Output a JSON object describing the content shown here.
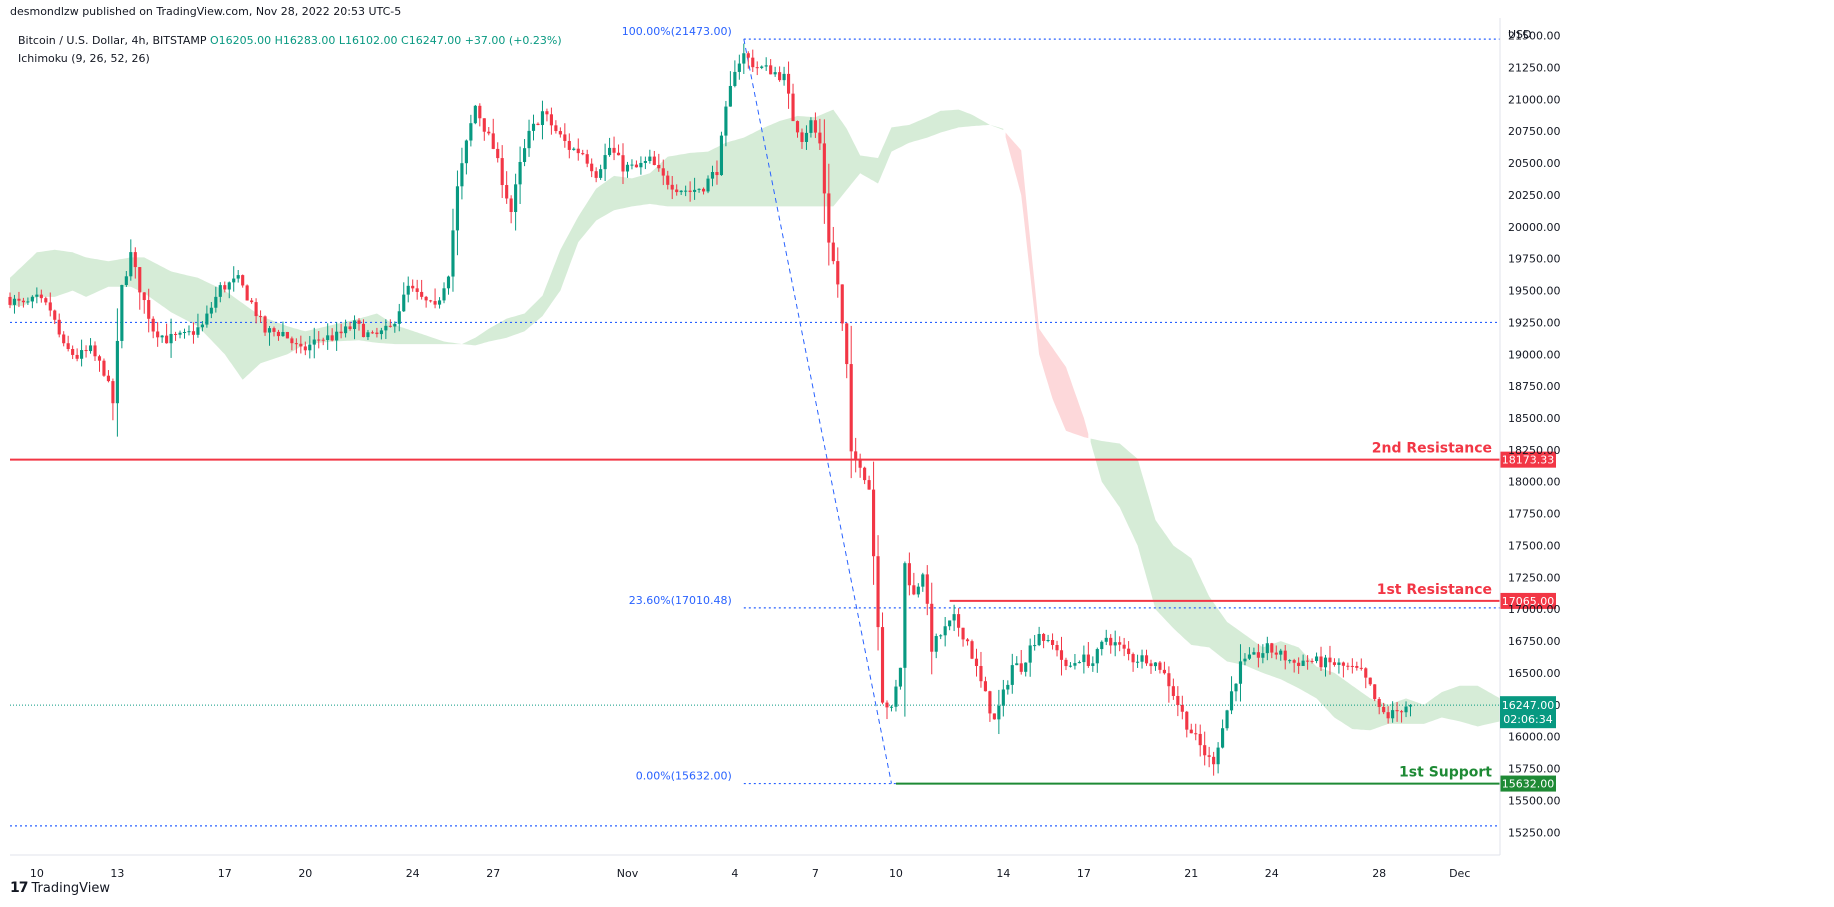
{
  "attribution": "desmondlzw published on TradingView.com, Nov 28, 2022 20:53 UTC-5",
  "brand": {
    "logo_text": "17",
    "name": "TradingView"
  },
  "legend": {
    "symbol": "Bitcoin / U.S. Dollar, 4h, BITSTAMP",
    "open": "O16205.00",
    "high": "H16283.00",
    "low": "L16102.00",
    "close": "C16247.00",
    "change": "+37.00 (+0.23%)",
    "indicator": "Ichimoku (9, 26, 52, 26)"
  },
  "colors": {
    "up": "#089981",
    "down": "#f23645",
    "resistance": "#f23645",
    "support": "#1e8a35",
    "fib": "#2962ff",
    "cloud_green": "#c8e6c9",
    "cloud_red": "#fccbcd"
  },
  "chart_data": {
    "type": "candlestick",
    "y_axis": {
      "unit": "USD",
      "ylim": [
        15150,
        21560
      ],
      "ticks": [
        "21500.00",
        "21250.00",
        "21000.00",
        "20750.00",
        "20500.00",
        "20250.00",
        "20000.00",
        "19750.00",
        "19500.00",
        "19250.00",
        "19000.00",
        "18750.00",
        "18500.00",
        "18250.00",
        "18000.00",
        "17750.00",
        "17500.00",
        "17250.00",
        "17000.00",
        "16750.00",
        "16500.00",
        "16250.00",
        "16000.00",
        "15750.00",
        "15500.00",
        "15250.00"
      ]
    },
    "x_axis": {
      "ticks": [
        {
          "label": "10",
          "slot": 6
        },
        {
          "label": "13",
          "slot": 24
        },
        {
          "label": "17",
          "slot": 48
        },
        {
          "label": "20",
          "slot": 66
        },
        {
          "label": "24",
          "slot": 90
        },
        {
          "label": "27",
          "slot": 108
        },
        {
          "label": "Nov",
          "slot": 138
        },
        {
          "label": "4",
          "slot": 162
        },
        {
          "label": "7",
          "slot": 180
        },
        {
          "label": "10",
          "slot": 198
        },
        {
          "label": "14",
          "slot": 222
        },
        {
          "label": "17",
          "slot": 240
        },
        {
          "label": "21",
          "slot": 264
        },
        {
          "label": "24",
          "slot": 282
        },
        {
          "label": "28",
          "slot": 306
        },
        {
          "label": "Dec",
          "slot": 324
        }
      ],
      "slot_range": [
        0,
        333
      ]
    },
    "price_anchors": [
      [
        0,
        19450
      ],
      [
        4,
        19380
      ],
      [
        7,
        19430
      ],
      [
        10,
        19350
      ],
      [
        13,
        19050
      ],
      [
        16,
        18980
      ],
      [
        19,
        19030
      ],
      [
        22,
        18870
      ],
      [
        24,
        18620
      ],
      [
        26,
        19520
      ],
      [
        28,
        19780
      ],
      [
        30,
        19520
      ],
      [
        33,
        19200
      ],
      [
        36,
        19120
      ],
      [
        40,
        19140
      ],
      [
        44,
        19220
      ],
      [
        48,
        19520
      ],
      [
        52,
        19580
      ],
      [
        55,
        19400
      ],
      [
        58,
        19180
      ],
      [
        62,
        19170
      ],
      [
        66,
        19020
      ],
      [
        70,
        19120
      ],
      [
        74,
        19140
      ],
      [
        78,
        19230
      ],
      [
        82,
        19130
      ],
      [
        86,
        19200
      ],
      [
        90,
        19520
      ],
      [
        93,
        19430
      ],
      [
        96,
        19350
      ],
      [
        99,
        19650
      ],
      [
        101,
        20300
      ],
      [
        103,
        20650
      ],
      [
        105,
        20950
      ],
      [
        107,
        20780
      ],
      [
        109,
        20620
      ],
      [
        111,
        20370
      ],
      [
        113,
        20120
      ],
      [
        115,
        20480
      ],
      [
        117,
        20720
      ],
      [
        120,
        20900
      ],
      [
        123,
        20750
      ],
      [
        126,
        20620
      ],
      [
        129,
        20580
      ],
      [
        132,
        20420
      ],
      [
        135,
        20620
      ],
      [
        138,
        20470
      ],
      [
        141,
        20460
      ],
      [
        144,
        20520
      ],
      [
        147,
        20380
      ],
      [
        150,
        20310
      ],
      [
        153,
        20280
      ],
      [
        156,
        20320
      ],
      [
        159,
        20450
      ],
      [
        161,
        20900
      ],
      [
        163,
        21250
      ],
      [
        165,
        21350
      ],
      [
        168,
        21250
      ],
      [
        171,
        21230
      ],
      [
        174,
        21170
      ],
      [
        176,
        20850
      ],
      [
        178,
        20700
      ],
      [
        180,
        20820
      ],
      [
        182,
        20650
      ],
      [
        184,
        19900
      ],
      [
        186,
        19550
      ],
      [
        188,
        18900
      ],
      [
        189,
        18200
      ],
      [
        191,
        18150
      ],
      [
        193,
        17950
      ],
      [
        195,
        16900
      ],
      [
        196,
        16300
      ],
      [
        198,
        16200
      ],
      [
        200,
        16550
      ],
      [
        201,
        17350
      ],
      [
        203,
        17100
      ],
      [
        205,
        17300
      ],
      [
        207,
        16700
      ],
      [
        209,
        16800
      ],
      [
        212,
        16920
      ],
      [
        215,
        16750
      ],
      [
        218,
        16420
      ],
      [
        221,
        16120
      ],
      [
        223,
        16330
      ],
      [
        225,
        16560
      ],
      [
        227,
        16550
      ],
      [
        229,
        16700
      ],
      [
        231,
        16820
      ],
      [
        233,
        16720
      ],
      [
        235,
        16700
      ],
      [
        237,
        16520
      ],
      [
        240,
        16620
      ],
      [
        243,
        16580
      ],
      [
        246,
        16780
      ],
      [
        249,
        16700
      ],
      [
        252,
        16610
      ],
      [
        255,
        16620
      ],
      [
        258,
        16550
      ],
      [
        260,
        16420
      ],
      [
        262,
        16260
      ],
      [
        264,
        16100
      ],
      [
        266,
        15980
      ],
      [
        268,
        15870
      ],
      [
        269,
        15820
      ],
      [
        270,
        15820
      ],
      [
        272,
        16070
      ],
      [
        274,
        16350
      ],
      [
        276,
        16560
      ],
      [
        279,
        16620
      ],
      [
        282,
        16690
      ],
      [
        285,
        16640
      ],
      [
        288,
        16580
      ],
      [
        291,
        16600
      ],
      [
        294,
        16580
      ],
      [
        297,
        16570
      ],
      [
        300,
        16540
      ],
      [
        303,
        16500
      ],
      [
        305,
        16380
      ],
      [
        307,
        16200
      ],
      [
        309,
        16160
      ],
      [
        311,
        16200
      ],
      [
        313,
        16247
      ]
    ],
    "ichimoku_cloud": {
      "span_a": [
        [
          0,
          19600
        ],
        [
          3,
          19700
        ],
        [
          6,
          19800
        ],
        [
          10,
          19820
        ],
        [
          14,
          19800
        ],
        [
          17,
          19760
        ],
        [
          22,
          19730
        ],
        [
          27,
          19760
        ],
        [
          30,
          19760
        ],
        [
          36,
          19650
        ],
        [
          42,
          19600
        ],
        [
          48,
          19500
        ],
        [
          52,
          19400
        ],
        [
          56,
          19300
        ],
        [
          62,
          19220
        ],
        [
          66,
          19180
        ],
        [
          72,
          19230
        ],
        [
          78,
          19280
        ],
        [
          82,
          19320
        ],
        [
          86,
          19230
        ],
        [
          92,
          19160
        ],
        [
          97,
          19100
        ],
        [
          101,
          19080
        ],
        [
          104,
          19130
        ],
        [
          107,
          19200
        ],
        [
          111,
          19280
        ],
        [
          115,
          19320
        ],
        [
          119,
          19460
        ],
        [
          123,
          19820
        ],
        [
          127,
          20080
        ],
        [
          131,
          20300
        ],
        [
          135,
          20400
        ],
        [
          139,
          20380
        ],
        [
          143,
          20420
        ],
        [
          147,
          20550
        ],
        [
          152,
          20580
        ],
        [
          156,
          20590
        ],
        [
          160,
          20660
        ],
        [
          164,
          20700
        ],
        [
          168,
          20770
        ],
        [
          172,
          20830
        ],
        [
          176,
          20870
        ],
        [
          180,
          20860
        ],
        [
          184,
          20920
        ],
        [
          187,
          20770
        ],
        [
          190,
          20560
        ],
        [
          194,
          20540
        ],
        [
          197,
          20780
        ],
        [
          201,
          20800
        ],
        [
          205,
          20860
        ],
        [
          208,
          20910
        ],
        [
          212,
          20920
        ],
        [
          215,
          20880
        ],
        [
          219,
          20800
        ],
        [
          222,
          20770
        ]
      ],
      "span_b": [
        [
          0,
          19380
        ],
        [
          3,
          19380
        ],
        [
          6,
          19450
        ],
        [
          10,
          19450
        ],
        [
          14,
          19500
        ],
        [
          17,
          19450
        ],
        [
          22,
          19530
        ],
        [
          27,
          19530
        ],
        [
          30,
          19480
        ],
        [
          36,
          19330
        ],
        [
          42,
          19220
        ],
        [
          48,
          19000
        ],
        [
          52,
          18800
        ],
        [
          56,
          18930
        ],
        [
          62,
          19000
        ],
        [
          66,
          19080
        ],
        [
          72,
          19100
        ],
        [
          78,
          19110
        ],
        [
          82,
          19090
        ],
        [
          86,
          19080
        ],
        [
          92,
          19080
        ],
        [
          97,
          19080
        ],
        [
          101,
          19080
        ],
        [
          104,
          19070
        ],
        [
          107,
          19100
        ],
        [
          111,
          19130
        ],
        [
          115,
          19180
        ],
        [
          119,
          19300
        ],
        [
          123,
          19500
        ],
        [
          127,
          19880
        ],
        [
          131,
          20050
        ],
        [
          135,
          20130
        ],
        [
          139,
          20160
        ],
        [
          143,
          20180
        ],
        [
          147,
          20160
        ],
        [
          152,
          20160
        ],
        [
          156,
          20160
        ],
        [
          160,
          20160
        ],
        [
          164,
          20160
        ],
        [
          168,
          20160
        ],
        [
          172,
          20160
        ],
        [
          176,
          20160
        ],
        [
          180,
          20160
        ],
        [
          184,
          20160
        ],
        [
          187,
          20290
        ],
        [
          190,
          20420
        ],
        [
          194,
          20340
        ],
        [
          197,
          20590
        ],
        [
          201,
          20660
        ],
        [
          205,
          20700
        ],
        [
          208,
          20740
        ],
        [
          212,
          20780
        ],
        [
          215,
          20790
        ],
        [
          219,
          20800
        ],
        [
          222,
          20760
        ]
      ],
      "span_a2": [
        [
          222,
          20770
        ],
        [
          226,
          20250
        ],
        [
          230,
          19000
        ],
        [
          233,
          18650
        ],
        [
          236,
          18400
        ],
        [
          240,
          18350
        ],
        [
          244,
          18320
        ],
        [
          248,
          18300
        ],
        [
          252,
          18180
        ],
        [
          256,
          17700
        ],
        [
          260,
          17500
        ],
        [
          264,
          17400
        ],
        [
          268,
          17100
        ],
        [
          272,
          16900
        ],
        [
          276,
          16800
        ],
        [
          280,
          16700
        ],
        [
          284,
          16750
        ],
        [
          288,
          16700
        ],
        [
          292,
          16550
        ],
        [
          296,
          16500
        ],
        [
          300,
          16400
        ],
        [
          304,
          16300
        ],
        [
          308,
          16250
        ],
        [
          312,
          16300
        ],
        [
          316,
          16250
        ],
        [
          320,
          16350
        ],
        [
          324,
          16400
        ],
        [
          328,
          16400
        ],
        [
          333,
          16300
        ]
      ],
      "span_b2": [
        [
          222,
          20760
        ],
        [
          226,
          20600
        ],
        [
          230,
          19200
        ],
        [
          233,
          19050
        ],
        [
          236,
          18900
        ],
        [
          240,
          18500
        ],
        [
          244,
          18000
        ],
        [
          248,
          17800
        ],
        [
          252,
          17500
        ],
        [
          256,
          17000
        ],
        [
          260,
          16850
        ],
        [
          264,
          16720
        ],
        [
          268,
          16700
        ],
        [
          272,
          16590
        ],
        [
          276,
          16560
        ],
        [
          280,
          16500
        ],
        [
          284,
          16450
        ],
        [
          288,
          16380
        ],
        [
          292,
          16300
        ],
        [
          296,
          16150
        ],
        [
          300,
          16060
        ],
        [
          304,
          16050
        ],
        [
          308,
          16100
        ],
        [
          312,
          16100
        ],
        [
          316,
          16100
        ],
        [
          320,
          16150
        ],
        [
          324,
          16120
        ],
        [
          328,
          16080
        ],
        [
          333,
          16120
        ]
      ]
    },
    "fib_levels": [
      {
        "label": "100.00%(21473.00)",
        "price": 21473,
        "from_slot": 164
      },
      {
        "label": "23.60%(17010.48)",
        "price": 17010.48,
        "from_slot": 164
      },
      {
        "label": "0.00%(15632.00)",
        "price": 15632,
        "from_slot": 164
      }
    ],
    "fib_trend": {
      "from": [
        164,
        21473
      ],
      "to": [
        197,
        15632
      ]
    },
    "horizontal_levels": [
      {
        "name": "2nd Resistance",
        "price": 18173.33,
        "price_label": "18173.33",
        "from_slot": 0,
        "kind": "resistance"
      },
      {
        "name": "1st Resistance",
        "price": 17065,
        "price_label": "17065.00",
        "from_slot": 210,
        "kind": "resistance"
      },
      {
        "name": "1st Support",
        "price": 15632,
        "price_label": "15632.00",
        "from_slot": 198,
        "kind": "support"
      }
    ],
    "dotted_levels": [
      19250,
      15300
    ],
    "current_price": {
      "price": 16247,
      "label": "16247.00",
      "countdown": "02:06:34"
    }
  }
}
